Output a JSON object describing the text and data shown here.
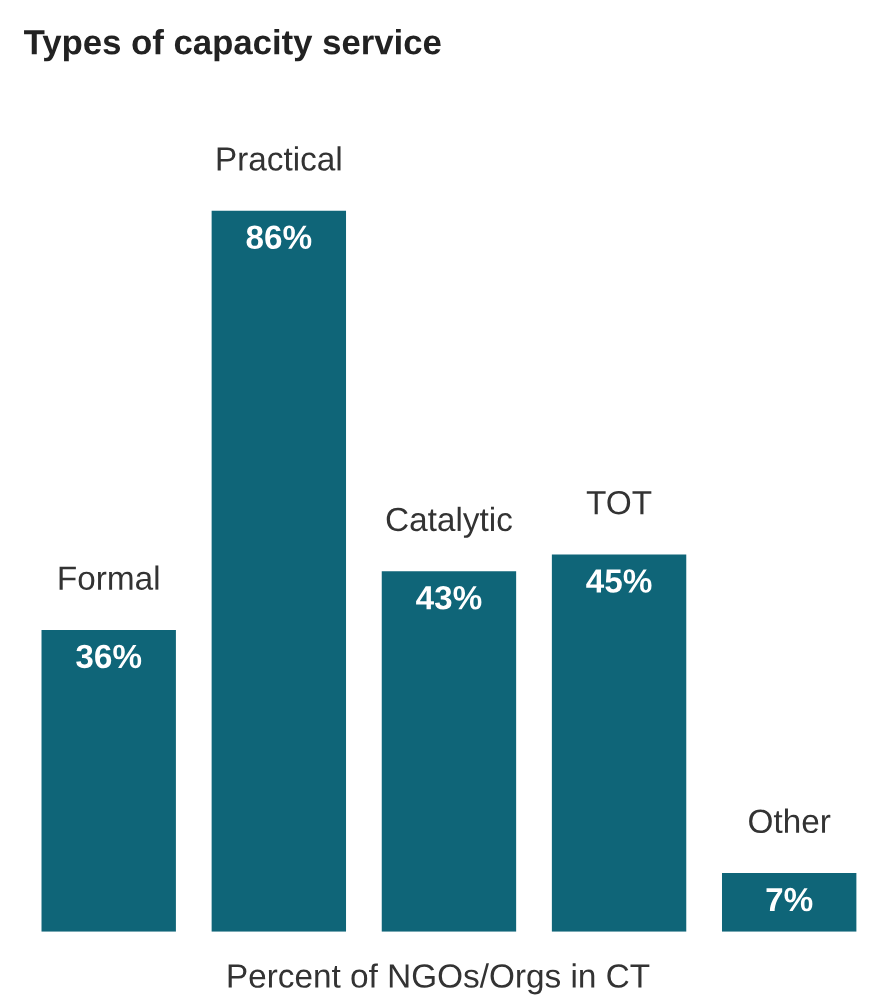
{
  "chart_data": {
    "type": "bar",
    "title": "Types of capacity service",
    "xlabel": "Percent of NGOs/Orgs in CT",
    "categories": [
      "Formal",
      "Practical",
      "Catalytic",
      "TOT",
      "Other"
    ],
    "values": [
      36,
      86,
      43,
      45,
      7
    ],
    "value_labels": [
      "36%",
      "86%",
      "43%",
      "45%",
      "7%"
    ],
    "color": "#0f6578"
  }
}
